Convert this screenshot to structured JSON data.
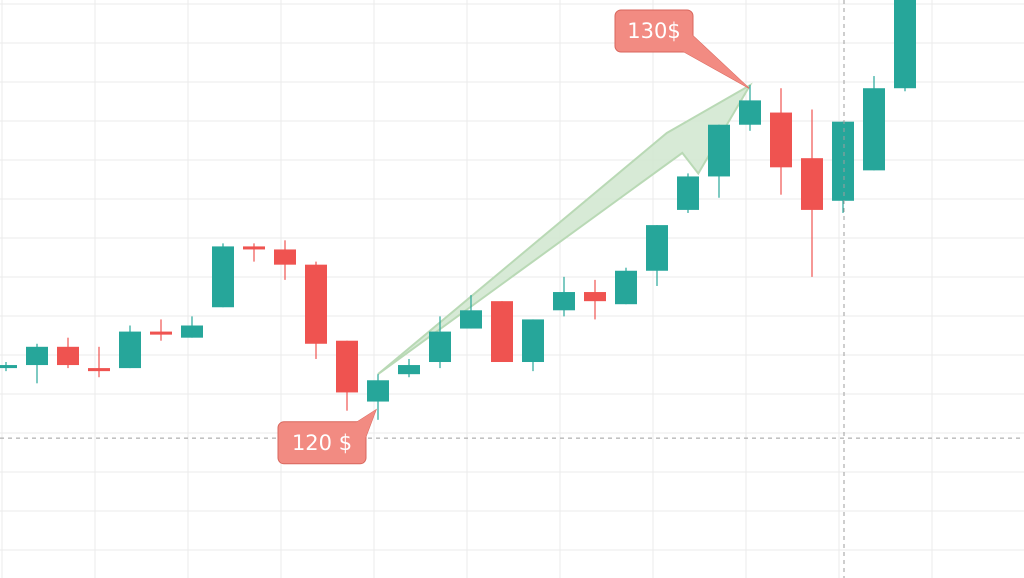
{
  "chart_data": {
    "type": "candlestick",
    "title": "",
    "xlabel": "",
    "ylabel": "",
    "grid": true,
    "ylim": [
      114,
      133
    ],
    "colors": {
      "up": "#26a69a",
      "down": "#ef5350",
      "arrow_fill": "#d3e8d1",
      "arrow_stroke": "#b9d9b5",
      "grid": "#ebebeb",
      "crosshair": "#9e9e9e",
      "callout_fill": "#f28b82",
      "callout_stroke": "#d8665c"
    },
    "candles": [
      {
        "open": 120.9,
        "close": 121.0,
        "high": 121.1,
        "low": 120.8
      },
      {
        "open": 121.0,
        "close": 121.6,
        "high": 121.7,
        "low": 120.4
      },
      {
        "open": 121.6,
        "close": 121.0,
        "high": 121.9,
        "low": 120.9
      },
      {
        "open": 120.9,
        "close": 120.8,
        "high": 121.6,
        "low": 120.6
      },
      {
        "open": 120.9,
        "close": 122.1,
        "high": 122.3,
        "low": 120.9
      },
      {
        "open": 122.1,
        "close": 122.0,
        "high": 122.5,
        "low": 121.8
      },
      {
        "open": 121.9,
        "close": 122.3,
        "high": 122.6,
        "low": 121.9
      },
      {
        "open": 122.9,
        "close": 124.9,
        "high": 125.0,
        "low": 122.9
      },
      {
        "open": 124.9,
        "close": 124.8,
        "high": 125.0,
        "low": 124.4
      },
      {
        "open": 124.8,
        "close": 124.3,
        "high": 125.1,
        "low": 123.8
      },
      {
        "open": 124.3,
        "close": 121.7,
        "high": 124.4,
        "low": 121.2
      },
      {
        "open": 121.8,
        "close": 120.1,
        "high": 121.8,
        "low": 119.5
      },
      {
        "open": 119.8,
        "close": 120.5,
        "high": 120.7,
        "low": 119.2
      },
      {
        "open": 120.7,
        "close": 121.0,
        "high": 121.2,
        "low": 120.6
      },
      {
        "open": 121.1,
        "close": 122.1,
        "high": 122.6,
        "low": 120.9
      },
      {
        "open": 122.2,
        "close": 122.8,
        "high": 123.3,
        "low": 122.2
      },
      {
        "open": 123.1,
        "close": 121.1,
        "high": 123.1,
        "low": 121.1
      },
      {
        "open": 121.1,
        "close": 122.5,
        "high": 122.5,
        "low": 120.8
      },
      {
        "open": 122.8,
        "close": 123.4,
        "high": 123.9,
        "low": 122.6
      },
      {
        "open": 123.4,
        "close": 123.1,
        "high": 123.8,
        "low": 122.5
      },
      {
        "open": 123.0,
        "close": 124.1,
        "high": 124.2,
        "low": 123.0
      },
      {
        "open": 124.1,
        "close": 125.6,
        "high": 125.6,
        "low": 123.6
      },
      {
        "open": 126.1,
        "close": 127.2,
        "high": 127.3,
        "low": 126.0
      },
      {
        "open": 127.2,
        "close": 128.9,
        "high": 128.9,
        "low": 126.5
      },
      {
        "open": 128.9,
        "close": 129.7,
        "high": 130.2,
        "low": 128.7
      },
      {
        "open": 129.3,
        "close": 127.5,
        "high": 130.1,
        "low": 126.6
      },
      {
        "open": 127.8,
        "close": 126.1,
        "high": 129.4,
        "low": 123.9
      },
      {
        "open": 126.4,
        "close": 129.0,
        "high": 129.0,
        "low": 126.0
      },
      {
        "open": 127.4,
        "close": 130.1,
        "high": 130.5,
        "low": 127.4
      },
      {
        "open": 130.1,
        "close": 133.0,
        "high": 133.0,
        "low": 130.0
      }
    ],
    "annotations": [
      {
        "text": "120 $",
        "candle_index": 12,
        "anchor": "low-callout-below"
      },
      {
        "text": "130$",
        "candle_index": 24,
        "anchor": "high-callout-above"
      }
    ],
    "trend_arrow": {
      "from_candle": 12,
      "to_candle": 24
    },
    "crosshair": {
      "candle_index": 27,
      "price": 118.6
    }
  }
}
